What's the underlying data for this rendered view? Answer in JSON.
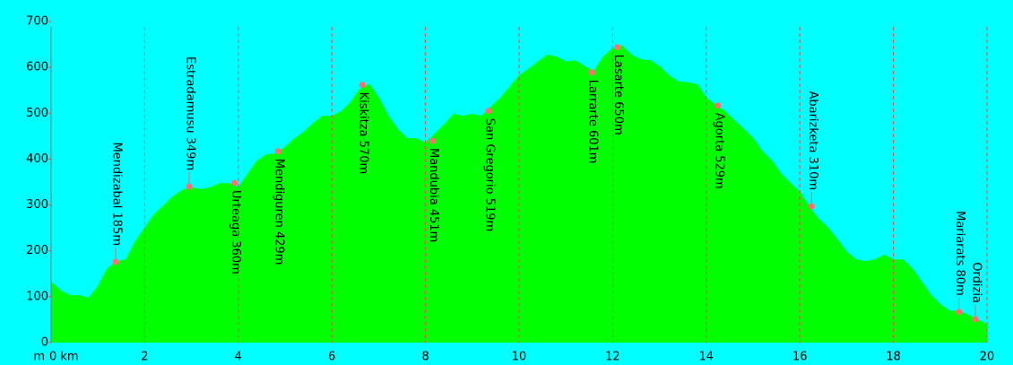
{
  "chart_data": {
    "type": "area",
    "y_unit": "m",
    "x": [
      0,
      0.2,
      0.4,
      0.6,
      0.8,
      1.0,
      1.2,
      1.4,
      1.6,
      1.8,
      2.0,
      2.2,
      2.4,
      2.6,
      2.8,
      3.0,
      3.2,
      3.4,
      3.6,
      3.8,
      4.0,
      4.2,
      4.4,
      4.6,
      4.8,
      5.0,
      5.2,
      5.4,
      5.6,
      5.8,
      6.0,
      6.2,
      6.4,
      6.6,
      6.8,
      7.0,
      7.2,
      7.4,
      7.6,
      7.8,
      8.0,
      8.2,
      8.4,
      8.6,
      8.8,
      9.0,
      9.2,
      9.4,
      9.6,
      9.8,
      10.0,
      10.2,
      10.4,
      10.6,
      10.8,
      11.0,
      11.2,
      11.4,
      11.6,
      11.8,
      12.0,
      12.2,
      12.4,
      12.6,
      12.8,
      13.0,
      13.2,
      13.4,
      13.6,
      13.8,
      14.0,
      14.2,
      14.4,
      14.6,
      14.8,
      15.0,
      15.2,
      15.4,
      15.6,
      15.8,
      16.0,
      16.2,
      16.4,
      16.6,
      16.8,
      17.0,
      17.2,
      17.4,
      17.6,
      17.8,
      18.0,
      18.2,
      18.4,
      18.6,
      18.8,
      19.0,
      19.2,
      19.4,
      19.6,
      19.8,
      20.0
    ],
    "series": [
      {
        "color": "#00ff00",
        "values": [
          131,
          112,
          102,
          102,
          96,
          121,
          160,
          176,
          180,
          219,
          249,
          278,
          297,
          317,
          331,
          337,
          333,
          337,
          346,
          346,
          337,
          366,
          395,
          409,
          411,
          425,
          444,
          458,
          477,
          493,
          493,
          503,
          523,
          552,
          562,
          532,
          493,
          464,
          444,
          444,
          434,
          454,
          474,
          497,
          493,
          497,
          493,
          513,
          532,
          556,
          581,
          595,
          611,
          626,
          622,
          611,
          614,
          601,
          591,
          622,
          640,
          646,
          626,
          616,
          614,
          601,
          581,
          568,
          566,
          562,
          532,
          517,
          503,
          483,
          464,
          444,
          415,
          395,
          366,
          346,
          327,
          294,
          268,
          249,
          223,
          196,
          180,
          176,
          180,
          190,
          180,
          180,
          160,
          131,
          102,
          82,
          68,
          68,
          59,
          49,
          39
        ]
      }
    ],
    "waypoints": [
      {
        "label": "Mendizabal 185m",
        "x": 1.38,
        "y": 176,
        "pos": "above"
      },
      {
        "label": "Estradamusu 349m",
        "x": 2.95,
        "y": 340,
        "pos": "above"
      },
      {
        "label": "Urteaga 360m",
        "x": 3.92,
        "y": 348,
        "pos": "below"
      },
      {
        "label": "Mendiguren 429m",
        "x": 4.85,
        "y": 417,
        "pos": "below"
      },
      {
        "label": "Kiskitza 570m",
        "x": 6.65,
        "y": 562,
        "pos": "below"
      },
      {
        "label": "Mandubia 451m",
        "x": 8.15,
        "y": 440,
        "pos": "below"
      },
      {
        "label": "San Gregorio 519m",
        "x": 9.35,
        "y": 505,
        "pos": "below"
      },
      {
        "label": "Larrarte 601m",
        "x": 11.55,
        "y": 589,
        "pos": "below"
      },
      {
        "label": "Lasarte 650m",
        "x": 12.1,
        "y": 644,
        "pos": "below"
      },
      {
        "label": "Agorta 529m",
        "x": 14.25,
        "y": 517,
        "pos": "below"
      },
      {
        "label": "Abarizketa 310m",
        "x": 16.25,
        "y": 297,
        "pos": "above"
      },
      {
        "label": "Mariarats 80m",
        "x": 19.4,
        "y": 67,
        "pos": "above"
      },
      {
        "label": "Ordizia",
        "x": 19.75,
        "y": 51,
        "pos": "above"
      }
    ],
    "xlim": [
      0,
      20
    ],
    "xticks": [
      {
        "value": 0,
        "label": "0 km"
      },
      2,
      4,
      6,
      8,
      10,
      12,
      14,
      16,
      18,
      20
    ],
    "ylim": [
      0,
      700
    ],
    "yticks": [
      0,
      100,
      200,
      300,
      400,
      500,
      600,
      700
    ],
    "grid": "x"
  }
}
